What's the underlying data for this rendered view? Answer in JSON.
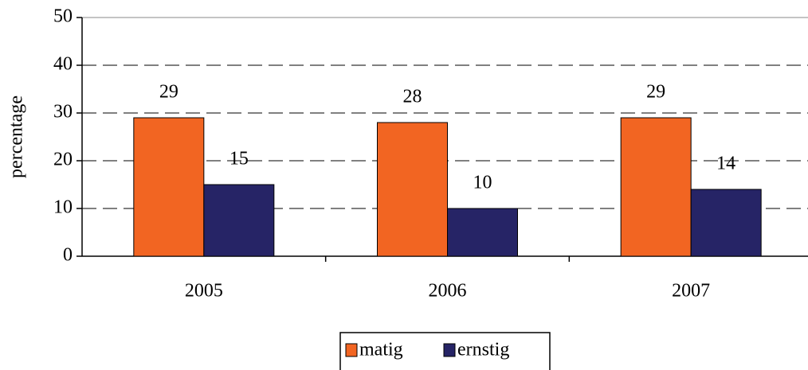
{
  "chart_data": {
    "type": "bar",
    "y_label": "percentage",
    "categories": [
      "2005",
      "2006",
      "2007"
    ],
    "series": [
      {
        "name": "matig",
        "color": "#f26522",
        "values": [
          29,
          28,
          29
        ]
      },
      {
        "name": "ernstig",
        "color": "#262466",
        "values": [
          15,
          10,
          14
        ]
      }
    ],
    "ylim": [
      0,
      50
    ],
    "yticks": [
      0,
      10,
      20,
      30,
      40,
      50
    ],
    "grid": true,
    "legend": "bottom"
  }
}
